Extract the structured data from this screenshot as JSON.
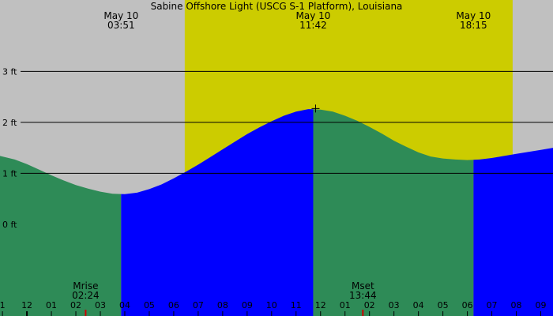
{
  "chart_data": {
    "type": "area",
    "title": "Sabine Offshore Light (USCG S-1 Platform), Louisiana",
    "xlabel": "",
    "ylabel": "",
    "x_unit": "hour of day",
    "y_unit": "ft",
    "xlim": [
      -1.1,
      21.5
    ],
    "ylim": [
      -1.8,
      4.4
    ],
    "y_ticks": [
      {
        "value": 0,
        "label": "0 ft"
      },
      {
        "value": 1,
        "label": "1 ft"
      },
      {
        "value": 2,
        "label": "2 ft"
      },
      {
        "value": 3,
        "label": "3 ft"
      }
    ],
    "x_ticks": [
      {
        "value": -1,
        "label": "1"
      },
      {
        "value": 0,
        "label": "12"
      },
      {
        "value": 1,
        "label": "01"
      },
      {
        "value": 2,
        "label": "02"
      },
      {
        "value": 3,
        "label": "03"
      },
      {
        "value": 4,
        "label": "04"
      },
      {
        "value": 5,
        "label": "05"
      },
      {
        "value": 6,
        "label": "06"
      },
      {
        "value": 7,
        "label": "07"
      },
      {
        "value": 8,
        "label": "08"
      },
      {
        "value": 9,
        "label": "09"
      },
      {
        "value": 10,
        "label": "10"
      },
      {
        "value": 11,
        "label": "11"
      },
      {
        "value": 12,
        "label": "12"
      },
      {
        "value": 13,
        "label": "01"
      },
      {
        "value": 14,
        "label": "02"
      },
      {
        "value": 15,
        "label": "03"
      },
      {
        "value": 16,
        "label": "04"
      },
      {
        "value": 17,
        "label": "05"
      },
      {
        "value": 18,
        "label": "06"
      },
      {
        "value": 19,
        "label": "07"
      },
      {
        "value": 20,
        "label": "08"
      },
      {
        "value": 21,
        "label": "09"
      }
    ],
    "daylight": {
      "start": 6.45,
      "end": 19.85
    },
    "tide_events": [
      {
        "date": "May 10",
        "time": "03:51",
        "hour": 3.85,
        "height": 0.6,
        "kind": "low"
      },
      {
        "date": "May 10",
        "time": "11:42",
        "hour": 11.7,
        "height": 2.27,
        "kind": "high"
      },
      {
        "date": "May 10",
        "time": "18:15",
        "hour": 18.25,
        "height": 1.28,
        "kind": "low"
      }
    ],
    "tide_curve": {
      "x": [
        -1.1,
        -0.5,
        0.0,
        0.5,
        1.0,
        1.5,
        2.0,
        2.5,
        3.0,
        3.5,
        4.0,
        4.5,
        5.0,
        5.5,
        6.0,
        6.5,
        7.0,
        7.5,
        8.0,
        8.5,
        9.0,
        9.5,
        10.0,
        10.5,
        11.0,
        11.5,
        12.0,
        12.5,
        13.0,
        13.5,
        14.0,
        14.5,
        15.0,
        15.5,
        16.0,
        16.5,
        17.0,
        17.5,
        18.0,
        18.5,
        19.0,
        19.5,
        20.0,
        20.5,
        21.0,
        21.5
      ],
      "y": [
        1.34,
        1.27,
        1.18,
        1.07,
        0.96,
        0.86,
        0.77,
        0.7,
        0.64,
        0.6,
        0.59,
        0.62,
        0.69,
        0.78,
        0.9,
        1.03,
        1.17,
        1.32,
        1.47,
        1.62,
        1.77,
        1.9,
        2.02,
        2.13,
        2.21,
        2.26,
        2.25,
        2.21,
        2.13,
        2.03,
        1.91,
        1.78,
        1.64,
        1.52,
        1.41,
        1.33,
        1.29,
        1.27,
        1.26,
        1.27,
        1.3,
        1.34,
        1.38,
        1.42,
        1.46,
        1.5
      ]
    },
    "moon_events": [
      {
        "label": "Mrise",
        "time": "02:24",
        "hour": 2.4
      },
      {
        "label": "Mset",
        "time": "13:44",
        "hour": 13.73
      }
    ],
    "colors": {
      "background": "#c0c0c0",
      "daylight": "#cccc00",
      "rising": "#0000ff",
      "falling": "#2e8b57",
      "gridline": "#000000",
      "text": "#000000",
      "moon_marker": "#cc0000"
    }
  }
}
